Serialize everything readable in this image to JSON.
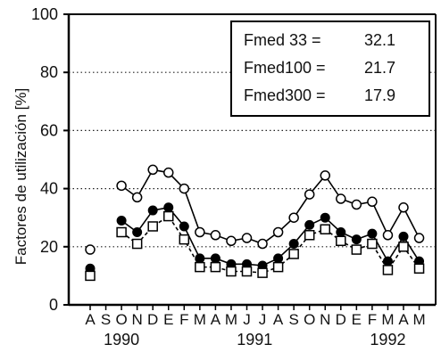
{
  "chart_data": {
    "type": "line",
    "ylabel": "Factores de utilización [%]",
    "xlabel": "",
    "ylim": [
      0,
      100
    ],
    "yticks": [
      0,
      20,
      40,
      60,
      80,
      100
    ],
    "grid": "horizontal dotted",
    "x": [
      "A",
      "S",
      "O",
      "N",
      "D",
      "E",
      "F",
      "M",
      "A",
      "M",
      "J",
      "J",
      "A",
      "S",
      "O",
      "N",
      "D",
      "E",
      "F",
      "M",
      "A",
      "M"
    ],
    "year_labels": [
      {
        "label": "1990",
        "center_index": 2
      },
      {
        "label": "1991",
        "center_index": 10.5
      },
      {
        "label": "1992",
        "center_index": 19
      }
    ],
    "series": [
      {
        "marker": "open-circle",
        "line_style": "solid",
        "values": [
          19,
          null,
          41,
          37,
          46.5,
          45.5,
          40,
          25,
          24,
          22,
          23,
          21,
          25,
          30,
          38,
          44.5,
          36.5,
          34.5,
          35.5,
          24,
          33.5,
          23
        ]
      },
      {
        "marker": "filled-circle",
        "line_style": "solid",
        "values": [
          12.5,
          null,
          29,
          25,
          32.5,
          33.5,
          27,
          16,
          16,
          14,
          14,
          13.5,
          16,
          21,
          27.5,
          30,
          25,
          22.5,
          24.5,
          15,
          23.5,
          15
        ]
      },
      {
        "marker": "open-square",
        "line_style": "dashed",
        "values": [
          10,
          null,
          25,
          21,
          27,
          30.5,
          22.5,
          13,
          13,
          11.5,
          11.5,
          11,
          13,
          17.5,
          24,
          26,
          22,
          19,
          21,
          12,
          20,
          12.5
        ]
      }
    ],
    "legend_box": {
      "position": "top-right",
      "lines": [
        {
          "label": "Fmed 33 =",
          "value": "32.1"
        },
        {
          "label": "Fmed100 =",
          "value": "21.7"
        },
        {
          "label": "Fmed300 =",
          "value": "17.9"
        }
      ]
    }
  }
}
